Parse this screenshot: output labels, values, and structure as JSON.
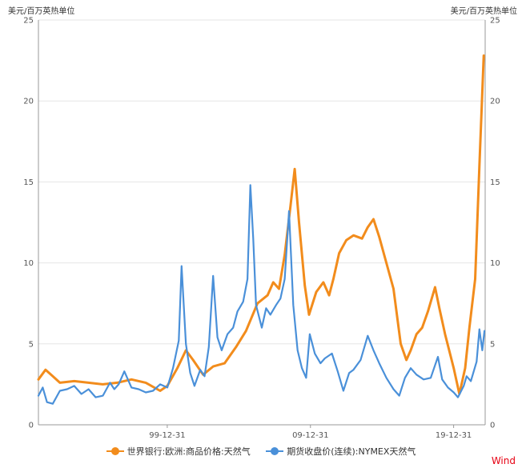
{
  "chart_data": {
    "type": "line",
    "y_unit_left": "美元/百万英热单位",
    "y_unit_right": "美元/百万英热单位",
    "x_tick_labels": [
      "99-12-31",
      "09-12-31",
      "19-12-31"
    ],
    "x_tick_years": [
      1999.9973,
      2009.9973,
      2019.9973
    ],
    "xlim": [
      1991.0,
      2022.2
    ],
    "ylim": [
      0,
      25
    ],
    "y_ticks": [
      0,
      5,
      10,
      15,
      20,
      25
    ],
    "grid": true,
    "legend_position": "bottom",
    "colors": {
      "series_0": "#f28c1c",
      "series_1": "#4a90d9",
      "brand": "#e60012"
    },
    "series": [
      {
        "name": "世界银行:欧洲:商品价格:天然气",
        "points": [
          [
            1991.0,
            2.8
          ],
          [
            1991.5,
            3.4
          ],
          [
            1992.0,
            3.0
          ],
          [
            1992.5,
            2.6
          ],
          [
            1993.5,
            2.7
          ],
          [
            1994.5,
            2.6
          ],
          [
            1995.5,
            2.5
          ],
          [
            1996.5,
            2.6
          ],
          [
            1997.5,
            2.8
          ],
          [
            1998.5,
            2.6
          ],
          [
            1999.5,
            2.1
          ],
          [
            2000.0,
            2.4
          ],
          [
            2000.7,
            3.5
          ],
          [
            2001.3,
            4.6
          ],
          [
            2001.8,
            4.0
          ],
          [
            2002.5,
            3.1
          ],
          [
            2003.2,
            3.6
          ],
          [
            2004.0,
            3.8
          ],
          [
            2004.8,
            4.8
          ],
          [
            2005.5,
            5.8
          ],
          [
            2006.3,
            7.5
          ],
          [
            2007.0,
            8.0
          ],
          [
            2007.4,
            8.8
          ],
          [
            2007.8,
            8.4
          ],
          [
            2008.2,
            10.5
          ],
          [
            2008.6,
            13.5
          ],
          [
            2008.9,
            15.8
          ],
          [
            2009.2,
            12.5
          ],
          [
            2009.6,
            8.6
          ],
          [
            2009.9,
            6.8
          ],
          [
            2010.4,
            8.2
          ],
          [
            2010.9,
            8.8
          ],
          [
            2011.3,
            8.0
          ],
          [
            2011.6,
            9.0
          ],
          [
            2012.0,
            10.6
          ],
          [
            2012.5,
            11.4
          ],
          [
            2013.0,
            11.7
          ],
          [
            2013.6,
            11.5
          ],
          [
            2014.0,
            12.2
          ],
          [
            2014.4,
            12.7
          ],
          [
            2014.8,
            11.6
          ],
          [
            2015.3,
            10.0
          ],
          [
            2015.8,
            8.4
          ],
          [
            2016.3,
            5.0
          ],
          [
            2016.7,
            4.0
          ],
          [
            2017.0,
            4.6
          ],
          [
            2017.4,
            5.6
          ],
          [
            2017.8,
            6.0
          ],
          [
            2018.2,
            7.0
          ],
          [
            2018.7,
            8.5
          ],
          [
            2019.0,
            7.2
          ],
          [
            2019.4,
            5.6
          ],
          [
            2019.8,
            4.2
          ],
          [
            2020.0,
            3.5
          ],
          [
            2020.4,
            1.9
          ],
          [
            2020.8,
            3.5
          ],
          [
            2021.1,
            6.0
          ],
          [
            2021.5,
            9.0
          ],
          [
            2021.8,
            16.0
          ],
          [
            2022.1,
            22.8
          ]
        ]
      },
      {
        "name": "期货收盘价(连续):NYMEX天然气",
        "points": [
          [
            1991.0,
            1.8
          ],
          [
            1991.3,
            2.3
          ],
          [
            1991.6,
            1.4
          ],
          [
            1992.0,
            1.3
          ],
          [
            1992.5,
            2.1
          ],
          [
            1993.0,
            2.2
          ],
          [
            1993.5,
            2.4
          ],
          [
            1994.0,
            1.9
          ],
          [
            1994.5,
            2.2
          ],
          [
            1995.0,
            1.7
          ],
          [
            1995.5,
            1.8
          ],
          [
            1996.0,
            2.6
          ],
          [
            1996.3,
            2.2
          ],
          [
            1996.6,
            2.5
          ],
          [
            1997.0,
            3.3
          ],
          [
            1997.5,
            2.3
          ],
          [
            1998.0,
            2.2
          ],
          [
            1998.5,
            2.0
          ],
          [
            1999.0,
            2.1
          ],
          [
            1999.5,
            2.5
          ],
          [
            2000.0,
            2.3
          ],
          [
            2000.4,
            3.5
          ],
          [
            2000.8,
            5.2
          ],
          [
            2001.0,
            9.8
          ],
          [
            2001.3,
            5.0
          ],
          [
            2001.6,
            3.2
          ],
          [
            2001.9,
            2.4
          ],
          [
            2002.3,
            3.4
          ],
          [
            2002.6,
            3.0
          ],
          [
            2002.9,
            4.8
          ],
          [
            2003.2,
            9.2
          ],
          [
            2003.5,
            5.4
          ],
          [
            2003.8,
            4.6
          ],
          [
            2004.2,
            5.6
          ],
          [
            2004.6,
            6.0
          ],
          [
            2004.9,
            7.0
          ],
          [
            2005.3,
            7.6
          ],
          [
            2005.6,
            9.0
          ],
          [
            2005.8,
            14.8
          ],
          [
            2006.0,
            11.5
          ],
          [
            2006.2,
            7.4
          ],
          [
            2006.6,
            6.0
          ],
          [
            2006.9,
            7.2
          ],
          [
            2007.2,
            6.8
          ],
          [
            2007.6,
            7.4
          ],
          [
            2007.9,
            7.8
          ],
          [
            2008.2,
            9.0
          ],
          [
            2008.5,
            13.2
          ],
          [
            2008.8,
            7.4
          ],
          [
            2009.1,
            4.6
          ],
          [
            2009.4,
            3.5
          ],
          [
            2009.7,
            2.9
          ],
          [
            2009.95,
            5.6
          ],
          [
            2010.3,
            4.4
          ],
          [
            2010.7,
            3.8
          ],
          [
            2011.0,
            4.1
          ],
          [
            2011.5,
            4.4
          ],
          [
            2011.9,
            3.3
          ],
          [
            2012.3,
            2.1
          ],
          [
            2012.7,
            3.2
          ],
          [
            2013.0,
            3.4
          ],
          [
            2013.5,
            4.0
          ],
          [
            2014.0,
            5.5
          ],
          [
            2014.4,
            4.6
          ],
          [
            2014.8,
            3.8
          ],
          [
            2015.3,
            2.9
          ],
          [
            2015.8,
            2.2
          ],
          [
            2016.2,
            1.8
          ],
          [
            2016.6,
            2.9
          ],
          [
            2017.0,
            3.5
          ],
          [
            2017.4,
            3.1
          ],
          [
            2017.9,
            2.8
          ],
          [
            2018.4,
            2.9
          ],
          [
            2018.9,
            4.2
          ],
          [
            2019.2,
            2.8
          ],
          [
            2019.6,
            2.3
          ],
          [
            2020.0,
            2.0
          ],
          [
            2020.3,
            1.7
          ],
          [
            2020.7,
            2.4
          ],
          [
            2020.9,
            3.0
          ],
          [
            2021.2,
            2.7
          ],
          [
            2021.6,
            3.9
          ],
          [
            2021.8,
            5.9
          ],
          [
            2022.0,
            4.6
          ],
          [
            2022.15,
            5.8
          ]
        ]
      }
    ]
  },
  "legend": [
    {
      "label": "世界银行:欧洲:商品价格:天然气",
      "color": "#f28c1c"
    },
    {
      "label": "期货收盘价(连续):NYMEX天然气",
      "color": "#4a90d9"
    }
  ],
  "brand": "Wind"
}
